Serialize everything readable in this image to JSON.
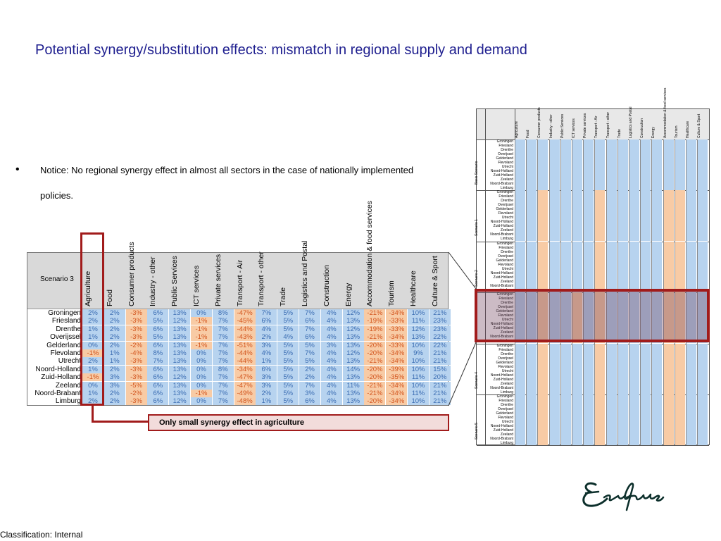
{
  "slide": {
    "title": "Potential synergy/substitution effects: mismatch in regional supply and demand",
    "bullet": "Notice: No regional synergy effect in almost all sectors in the case of nationally implemented policies.",
    "classification": "Classification: Internal",
    "note": "Only small synergy effect in agriculture"
  },
  "colors": {
    "blue_cell": "#b7d3ef",
    "orange_cell": "#f8cba5",
    "highlight": "#a11b1b",
    "title": "#1f1f8f"
  },
  "table": {
    "scenario_label": "Scenario 3",
    "columns": [
      "Agriculture",
      "Food",
      "Consumer products",
      "Industry - other",
      "Public Services",
      "ICT services",
      "Private services",
      "Transport - Air",
      "Transport - other",
      "Trade",
      "Logistics and Postal",
      "Construction",
      "Energy",
      "Accommodation & food services",
      "Tourism",
      "Healthcare",
      "Culture & Sport"
    ],
    "rows": [
      {
        "region": "Groningen",
        "values": [
          "2%",
          "2%",
          "-3%",
          "6%",
          "13%",
          "0%",
          "8%",
          "-47%",
          "7%",
          "5%",
          "7%",
          "4%",
          "12%",
          "-21%",
          "-34%",
          "10%",
          "21%"
        ]
      },
      {
        "region": "Friesland",
        "values": [
          "2%",
          "2%",
          "-3%",
          "5%",
          "12%",
          "-1%",
          "7%",
          "-45%",
          "6%",
          "5%",
          "6%",
          "4%",
          "13%",
          "-19%",
          "-33%",
          "11%",
          "23%"
        ]
      },
      {
        "region": "Drenthe",
        "values": [
          "1%",
          "2%",
          "-3%",
          "6%",
          "13%",
          "-1%",
          "7%",
          "-44%",
          "4%",
          "5%",
          "7%",
          "4%",
          "12%",
          "-19%",
          "-33%",
          "12%",
          "23%"
        ]
      },
      {
        "region": "Overijssel",
        "values": [
          "1%",
          "2%",
          "-3%",
          "5%",
          "13%",
          "-1%",
          "7%",
          "-43%",
          "2%",
          "4%",
          "6%",
          "4%",
          "13%",
          "-21%",
          "-34%",
          "13%",
          "22%"
        ]
      },
      {
        "region": "Gelderland",
        "values": [
          "0%",
          "2%",
          "-2%",
          "6%",
          "13%",
          "-1%",
          "7%",
          "-51%",
          "3%",
          "5%",
          "5%",
          "3%",
          "13%",
          "-20%",
          "-33%",
          "10%",
          "22%"
        ]
      },
      {
        "region": "Flevoland",
        "values": [
          "-1%",
          "1%",
          "-4%",
          "8%",
          "13%",
          "0%",
          "7%",
          "-44%",
          "4%",
          "5%",
          "7%",
          "4%",
          "12%",
          "-20%",
          "-34%",
          "9%",
          "21%"
        ]
      },
      {
        "region": "Utrecht",
        "values": [
          "2%",
          "1%",
          "-3%",
          "7%",
          "13%",
          "0%",
          "7%",
          "-44%",
          "1%",
          "5%",
          "5%",
          "4%",
          "13%",
          "-21%",
          "-34%",
          "10%",
          "21%"
        ]
      },
      {
        "region": "Noord-Holland",
        "values": [
          "1%",
          "2%",
          "-3%",
          "6%",
          "13%",
          "0%",
          "8%",
          "-34%",
          "6%",
          "5%",
          "2%",
          "4%",
          "14%",
          "-20%",
          "-39%",
          "10%",
          "15%"
        ]
      },
      {
        "region": "Zuid-Holland",
        "values": [
          "-1%",
          "3%",
          "-3%",
          "6%",
          "12%",
          "0%",
          "7%",
          "-47%",
          "3%",
          "5%",
          "2%",
          "4%",
          "13%",
          "-20%",
          "-35%",
          "11%",
          "20%"
        ]
      },
      {
        "region": "Zeeland",
        "values": [
          "0%",
          "3%",
          "-5%",
          "6%",
          "13%",
          "0%",
          "7%",
          "-47%",
          "3%",
          "5%",
          "7%",
          "4%",
          "11%",
          "-21%",
          "-34%",
          "10%",
          "21%"
        ]
      },
      {
        "region": "Noord-Brabant",
        "values": [
          "1%",
          "2%",
          "-2%",
          "6%",
          "13%",
          "-1%",
          "7%",
          "-49%",
          "2%",
          "5%",
          "3%",
          "4%",
          "13%",
          "-21%",
          "-34%",
          "11%",
          "21%"
        ]
      },
      {
        "region": "Limburg",
        "values": [
          "2%",
          "2%",
          "-3%",
          "6%",
          "12%",
          "0%",
          "7%",
          "-48%",
          "1%",
          "5%",
          "6%",
          "4%",
          "13%",
          "-20%",
          "-34%",
          "10%",
          "21%"
        ]
      }
    ]
  },
  "overview": {
    "columns": [
      "Agriculture",
      "Food",
      "Consumer products",
      "Industry - other",
      "Public Services",
      "ICT services",
      "Private services",
      "Transport - Air",
      "Transport - other",
      "Trade",
      "Logistics and Postal",
      "Construction",
      "Energy",
      "Accommodation & food services",
      "Tourism",
      "Healthcare",
      "Culture & Sport"
    ],
    "regions": [
      "Groningen",
      "Friesland",
      "Drenthe",
      "Overijssel",
      "Gelderland",
      "Flevoland",
      "Utrecht",
      "Noord-Holland",
      "Zuid-Holland",
      "Zeeland",
      "Noord-Brabant",
      "Limburg"
    ],
    "scenarios": [
      {
        "label": "Basis Scenario",
        "orange_cols": []
      },
      {
        "label": "Scenario 1",
        "orange_cols": [
          2,
          7,
          13,
          14
        ]
      },
      {
        "label": "Scenario 2",
        "orange_cols": [
          2,
          7,
          13,
          14
        ]
      },
      {
        "label": "Scenario 3",
        "orange_cols": [
          2,
          5,
          7,
          13,
          14
        ]
      },
      {
        "label": "Scenario 4",
        "orange_cols": [
          2,
          7,
          13,
          14
        ]
      },
      {
        "label": "Scenario 5",
        "orange_cols": [
          2,
          7,
          13,
          14
        ]
      }
    ]
  }
}
